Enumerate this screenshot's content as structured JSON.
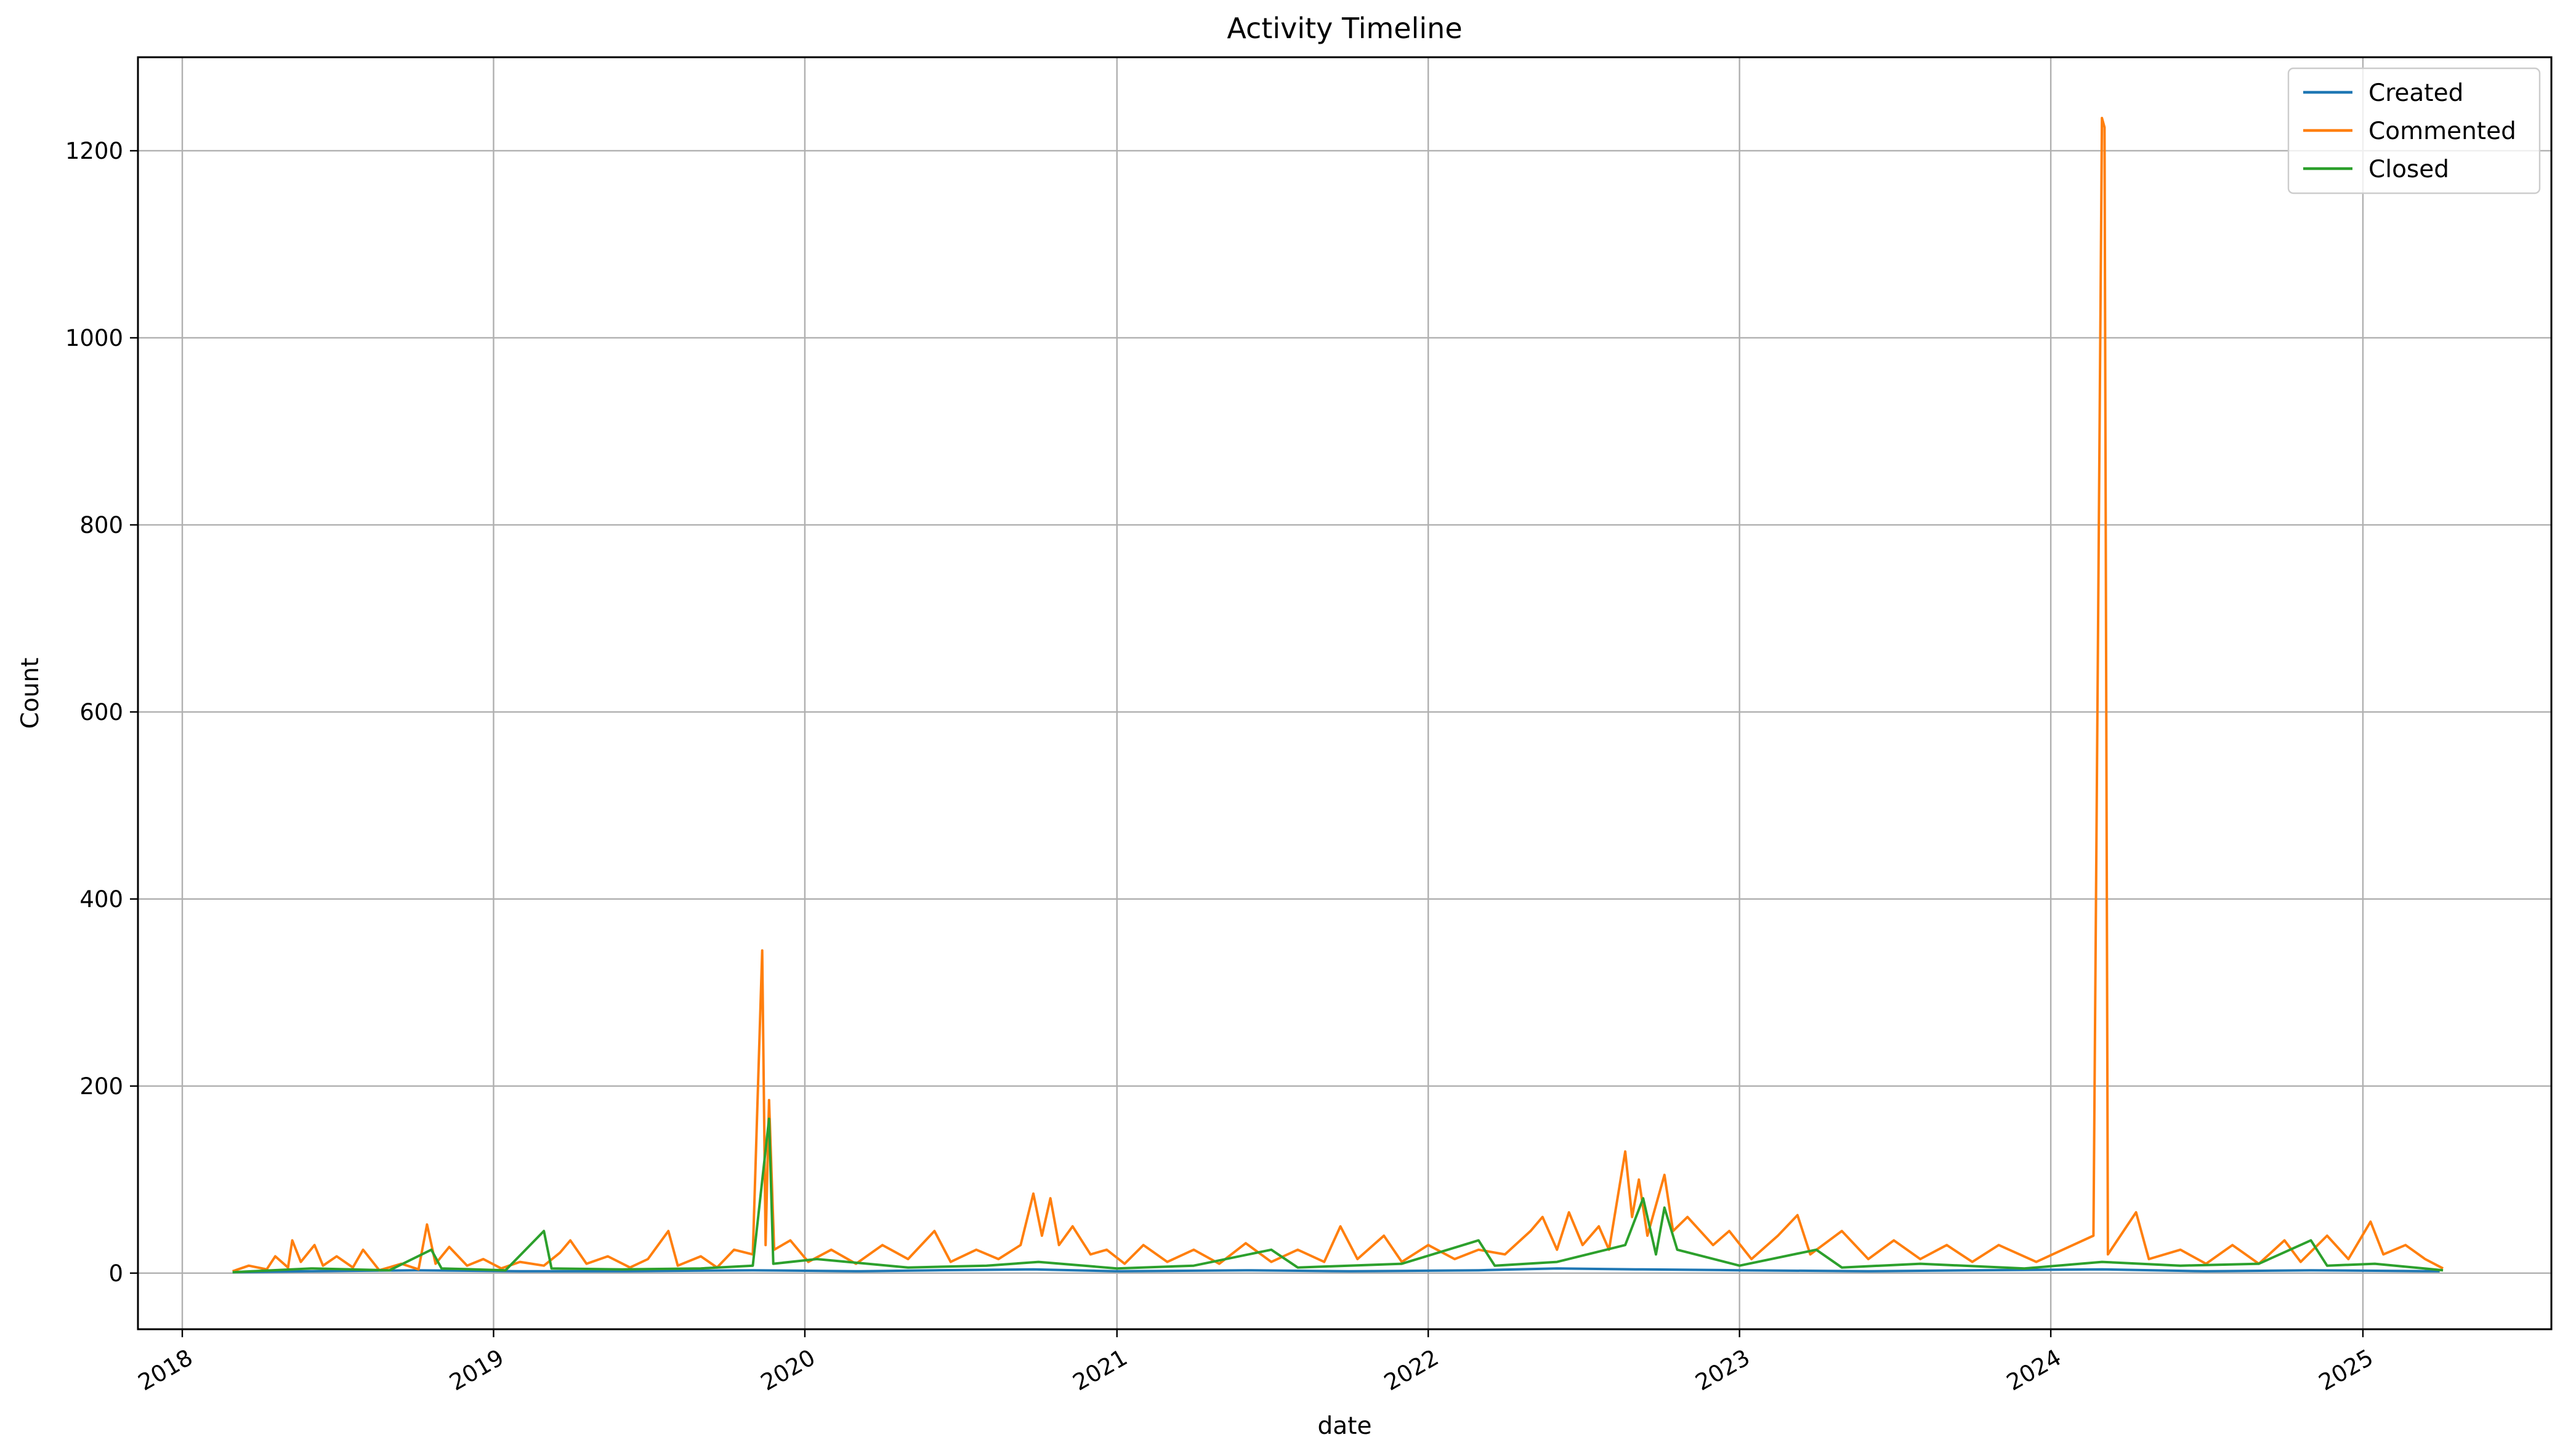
{
  "chart_data": {
    "type": "line",
    "title": "Activity Timeline",
    "xlabel": "date",
    "ylabel": "Count",
    "x_tick_labels": [
      "2018",
      "2019",
      "2020",
      "2021",
      "2022",
      "2023",
      "2024",
      "2025"
    ],
    "y_tick_labels": [
      "0",
      "200",
      "400",
      "600",
      "800",
      "1000",
      "1200"
    ],
    "y_ticks": [
      0,
      200,
      400,
      600,
      800,
      1000,
      1200
    ],
    "ylim": [
      -60,
      1300
    ],
    "xlim": [
      "2017-11-10",
      "2025-08-10"
    ],
    "grid": true,
    "legend_position": "top-right",
    "series": [
      {
        "name": "Created",
        "color": "#1f77b4",
        "points": [
          [
            "2018-03-01",
            1
          ],
          [
            "2018-06-01",
            2
          ],
          [
            "2018-10-01",
            3
          ],
          [
            "2019-02-01",
            2
          ],
          [
            "2019-06-01",
            2
          ],
          [
            "2019-11-01",
            3
          ],
          [
            "2020-03-01",
            2
          ],
          [
            "2020-06-01",
            3
          ],
          [
            "2020-09-25",
            4
          ],
          [
            "2021-01-01",
            2
          ],
          [
            "2021-06-01",
            3
          ],
          [
            "2021-10-01",
            2
          ],
          [
            "2022-03-01",
            3
          ],
          [
            "2022-06-01",
            5
          ],
          [
            "2022-09-01",
            4
          ],
          [
            "2023-01-01",
            3
          ],
          [
            "2023-06-01",
            2
          ],
          [
            "2023-10-01",
            3
          ],
          [
            "2024-03-01",
            4
          ],
          [
            "2024-07-01",
            2
          ],
          [
            "2024-11-01",
            3
          ],
          [
            "2025-04-01",
            2
          ]
        ]
      },
      {
        "name": "Commented",
        "color": "#ff7f0e",
        "points": [
          [
            "2018-03-01",
            2
          ],
          [
            "2018-03-20",
            8
          ],
          [
            "2018-04-10",
            4
          ],
          [
            "2018-04-20",
            18
          ],
          [
            "2018-05-05",
            6
          ],
          [
            "2018-05-10",
            35
          ],
          [
            "2018-05-20",
            12
          ],
          [
            "2018-06-05",
            30
          ],
          [
            "2018-06-15",
            8
          ],
          [
            "2018-07-01",
            18
          ],
          [
            "2018-07-20",
            6
          ],
          [
            "2018-08-01",
            25
          ],
          [
            "2018-08-20",
            3
          ],
          [
            "2018-09-15",
            10
          ],
          [
            "2018-10-05",
            4
          ],
          [
            "2018-10-15",
            52
          ],
          [
            "2018-10-25",
            10
          ],
          [
            "2018-11-10",
            28
          ],
          [
            "2018-12-01",
            8
          ],
          [
            "2018-12-20",
            15
          ],
          [
            "2019-01-10",
            5
          ],
          [
            "2019-02-01",
            12
          ],
          [
            "2019-03-01",
            8
          ],
          [
            "2019-03-20",
            22
          ],
          [
            "2019-04-01",
            35
          ],
          [
            "2019-04-20",
            10
          ],
          [
            "2019-05-15",
            18
          ],
          [
            "2019-06-10",
            6
          ],
          [
            "2019-07-01",
            15
          ],
          [
            "2019-07-25",
            45
          ],
          [
            "2019-08-05",
            8
          ],
          [
            "2019-09-01",
            18
          ],
          [
            "2019-09-20",
            6
          ],
          [
            "2019-10-10",
            25
          ],
          [
            "2019-11-01",
            20
          ],
          [
            "2019-11-12",
            345
          ],
          [
            "2019-11-16",
            30
          ],
          [
            "2019-11-20",
            185
          ],
          [
            "2019-11-26",
            25
          ],
          [
            "2019-12-15",
            35
          ],
          [
            "2020-01-05",
            12
          ],
          [
            "2020-02-01",
            25
          ],
          [
            "2020-03-01",
            10
          ],
          [
            "2020-04-01",
            30
          ],
          [
            "2020-05-01",
            15
          ],
          [
            "2020-06-01",
            45
          ],
          [
            "2020-06-20",
            12
          ],
          [
            "2020-07-20",
            25
          ],
          [
            "2020-08-15",
            15
          ],
          [
            "2020-09-10",
            30
          ],
          [
            "2020-09-25",
            85
          ],
          [
            "2020-10-05",
            40
          ],
          [
            "2020-10-15",
            80
          ],
          [
            "2020-10-25",
            30
          ],
          [
            "2020-11-10",
            50
          ],
          [
            "2020-12-01",
            20
          ],
          [
            "2020-12-20",
            25
          ],
          [
            "2021-01-10",
            10
          ],
          [
            "2021-02-01",
            30
          ],
          [
            "2021-03-01",
            12
          ],
          [
            "2021-04-01",
            25
          ],
          [
            "2021-05-01",
            10
          ],
          [
            "2021-06-01",
            32
          ],
          [
            "2021-07-01",
            12
          ],
          [
            "2021-08-01",
            25
          ],
          [
            "2021-09-01",
            12
          ],
          [
            "2021-09-20",
            50
          ],
          [
            "2021-10-10",
            15
          ],
          [
            "2021-11-10",
            40
          ],
          [
            "2021-12-01",
            12
          ],
          [
            "2022-01-01",
            30
          ],
          [
            "2022-02-01",
            15
          ],
          [
            "2022-03-01",
            25
          ],
          [
            "2022-04-01",
            20
          ],
          [
            "2022-05-01",
            45
          ],
          [
            "2022-05-15",
            60
          ],
          [
            "2022-06-01",
            25
          ],
          [
            "2022-06-15",
            65
          ],
          [
            "2022-07-01",
            30
          ],
          [
            "2022-07-20",
            50
          ],
          [
            "2022-08-01",
            25
          ],
          [
            "2022-08-20",
            130
          ],
          [
            "2022-08-28",
            60
          ],
          [
            "2022-09-05",
            100
          ],
          [
            "2022-09-15",
            40
          ],
          [
            "2022-10-05",
            105
          ],
          [
            "2022-10-15",
            45
          ],
          [
            "2022-11-01",
            60
          ],
          [
            "2022-12-01",
            30
          ],
          [
            "2022-12-20",
            45
          ],
          [
            "2023-01-15",
            15
          ],
          [
            "2023-02-15",
            40
          ],
          [
            "2023-03-10",
            62
          ],
          [
            "2023-03-25",
            20
          ],
          [
            "2023-05-01",
            45
          ],
          [
            "2023-06-01",
            15
          ],
          [
            "2023-07-01",
            35
          ],
          [
            "2023-08-01",
            15
          ],
          [
            "2023-09-01",
            30
          ],
          [
            "2023-10-01",
            12
          ],
          [
            "2023-11-01",
            30
          ],
          [
            "2023-12-15",
            12
          ],
          [
            "2024-01-15",
            25
          ],
          [
            "2024-02-20",
            40
          ],
          [
            "2024-03-01",
            1235
          ],
          [
            "2024-03-04",
            1225
          ],
          [
            "2024-03-08",
            20
          ],
          [
            "2024-04-10",
            65
          ],
          [
            "2024-04-25",
            15
          ],
          [
            "2024-06-01",
            25
          ],
          [
            "2024-07-01",
            10
          ],
          [
            "2024-08-01",
            30
          ],
          [
            "2024-09-01",
            10
          ],
          [
            "2024-10-01",
            35
          ],
          [
            "2024-10-20",
            12
          ],
          [
            "2024-11-20",
            40
          ],
          [
            "2024-12-15",
            15
          ],
          [
            "2025-01-10",
            55
          ],
          [
            "2025-01-25",
            20
          ],
          [
            "2025-02-20",
            30
          ],
          [
            "2025-03-15",
            15
          ],
          [
            "2025-04-05",
            5
          ]
        ]
      },
      {
        "name": "Closed",
        "color": "#2ca02c",
        "points": [
          [
            "2018-03-01",
            1
          ],
          [
            "2018-06-01",
            5
          ],
          [
            "2018-09-01",
            3
          ],
          [
            "2018-10-20",
            25
          ],
          [
            "2018-11-01",
            5
          ],
          [
            "2019-01-15",
            3
          ],
          [
            "2019-03-01",
            45
          ],
          [
            "2019-03-10",
            5
          ],
          [
            "2019-06-01",
            4
          ],
          [
            "2019-09-01",
            5
          ],
          [
            "2019-11-01",
            8
          ],
          [
            "2019-11-20",
            165
          ],
          [
            "2019-11-25",
            10
          ],
          [
            "2020-01-15",
            15
          ],
          [
            "2020-05-01",
            6
          ],
          [
            "2020-08-01",
            8
          ],
          [
            "2020-10-01",
            12
          ],
          [
            "2021-01-01",
            5
          ],
          [
            "2021-04-01",
            8
          ],
          [
            "2021-07-01",
            25
          ],
          [
            "2021-08-01",
            6
          ],
          [
            "2021-12-01",
            10
          ],
          [
            "2022-03-01",
            35
          ],
          [
            "2022-03-20",
            8
          ],
          [
            "2022-06-01",
            12
          ],
          [
            "2022-08-20",
            30
          ],
          [
            "2022-09-10",
            80
          ],
          [
            "2022-09-25",
            20
          ],
          [
            "2022-10-05",
            70
          ],
          [
            "2022-10-20",
            25
          ],
          [
            "2023-01-01",
            8
          ],
          [
            "2023-04-01",
            25
          ],
          [
            "2023-05-01",
            6
          ],
          [
            "2023-08-01",
            10
          ],
          [
            "2023-12-01",
            5
          ],
          [
            "2024-03-01",
            12
          ],
          [
            "2024-06-01",
            8
          ],
          [
            "2024-09-01",
            10
          ],
          [
            "2024-11-01",
            35
          ],
          [
            "2024-11-20",
            8
          ],
          [
            "2025-01-15",
            10
          ],
          [
            "2025-04-05",
            3
          ]
        ]
      }
    ]
  }
}
